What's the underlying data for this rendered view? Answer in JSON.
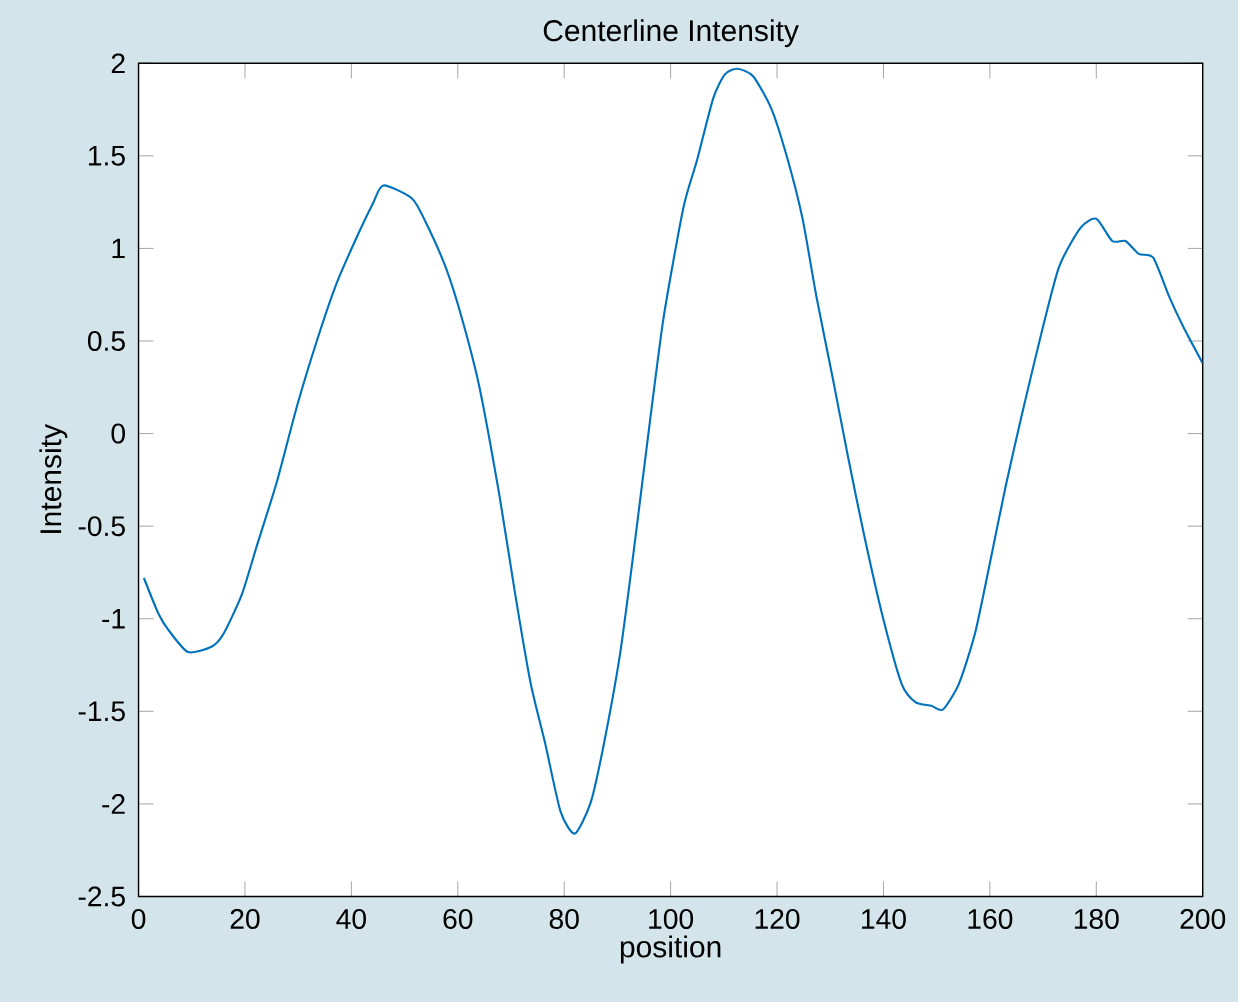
{
  "chart_data": {
    "type": "line",
    "title": "Centerline Intensity",
    "xlabel": "position",
    "ylabel": "Intensity",
    "xlim": [
      0,
      200
    ],
    "ylim": [
      -2.5,
      2
    ],
    "xticks": [
      0,
      20,
      40,
      60,
      80,
      100,
      120,
      140,
      160,
      180,
      200
    ],
    "yticks": [
      -2.5,
      -2,
      -1.5,
      -1,
      -0.5,
      0,
      0.5,
      1,
      1.5,
      2
    ],
    "series": [
      {
        "color": "#0072bd",
        "x": [
          1,
          3.7,
          5.6,
          9.3,
          13.8,
          16,
          19.4,
          22.3,
          26,
          29.8,
          33.5,
          37.2,
          41,
          44,
          46,
          51.4,
          54,
          57.7,
          60.7,
          64,
          67.8,
          70.8,
          73.7,
          76.4,
          79.3,
          82,
          85,
          87.5,
          90.5,
          93,
          96,
          98.7,
          102.4,
          105,
          108,
          110.2,
          112.5,
          115.5,
          119,
          122,
          124.8,
          127.4,
          130.4,
          133.3,
          136.3,
          139.7,
          143.4,
          146,
          149,
          151.2,
          154.2,
          157.2,
          160,
          163,
          166,
          169.5,
          173,
          177,
          180,
          183,
          185.5,
          188,
          190.7,
          193.7,
          196.3,
          200
        ],
        "values": [
          -0.78,
          -0.97,
          -1.06,
          -1.18,
          -1.15,
          -1.08,
          -0.87,
          -0.6,
          -0.26,
          0.15,
          0.5,
          0.81,
          1.06,
          1.24,
          1.34,
          1.27,
          1.14,
          0.9,
          0.63,
          0.26,
          -0.33,
          -0.87,
          -1.35,
          -1.67,
          -2.04,
          -2.16,
          -1.99,
          -1.67,
          -1.19,
          -0.65,
          0.04,
          0.63,
          1.22,
          1.48,
          1.81,
          1.94,
          1.97,
          1.93,
          1.75,
          1.48,
          1.16,
          0.74,
          0.31,
          -0.12,
          -0.54,
          -0.97,
          -1.35,
          -1.45,
          -1.47,
          -1.49,
          -1.35,
          -1.08,
          -0.7,
          -0.28,
          0.1,
          0.52,
          0.9,
          1.11,
          1.16,
          1.04,
          1.04,
          0.97,
          0.95,
          0.74,
          0.58,
          0.38
        ]
      }
    ],
    "grid": false,
    "marker": "none",
    "line_style": "solid"
  }
}
